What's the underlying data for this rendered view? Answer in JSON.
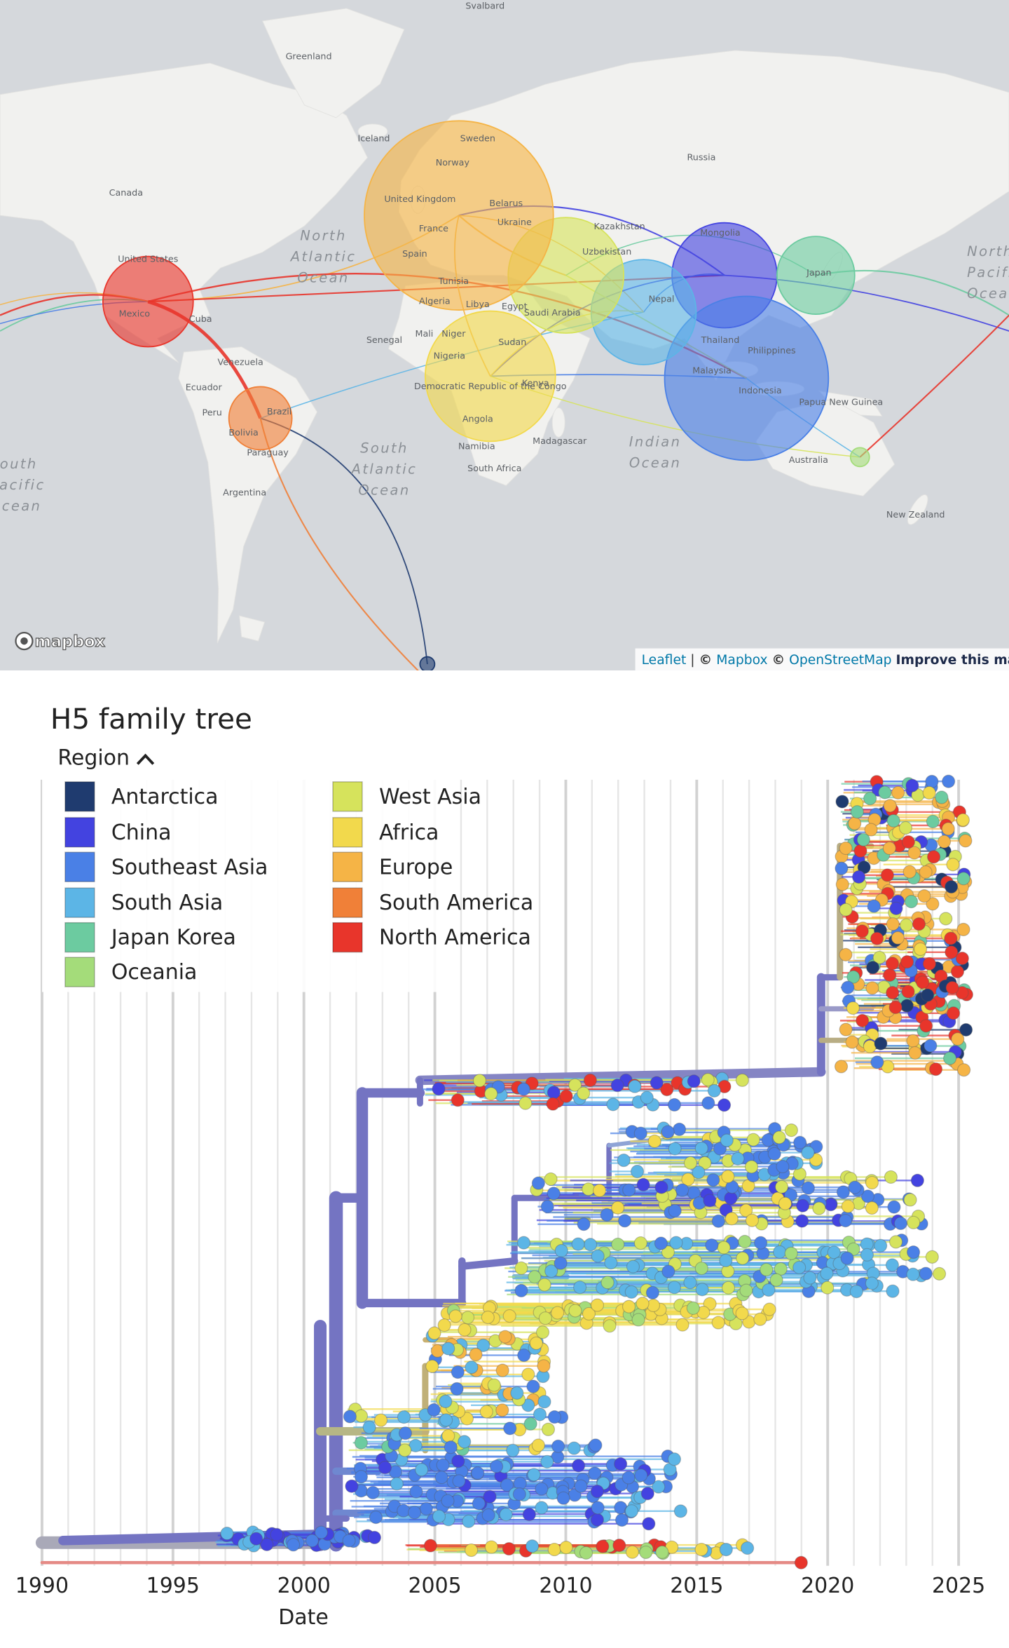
{
  "map": {
    "labels": [
      "Svalbard",
      "Greenland",
      "Iceland",
      "Sweden",
      "Norway",
      "Russia",
      "Canada",
      "United Kingdom",
      "Belarus",
      "Kazakhstan",
      "Mongolia",
      "France",
      "Ukraine",
      "Uzbekistan",
      "Japan",
      "United States",
      "Spain",
      "Tunisia",
      "Algeria",
      "Libya",
      "Egypt",
      "Saudi Arabia",
      "Mexico",
      "Cuba",
      "Senegal",
      "Mali",
      "Niger",
      "Sudan",
      "Philippines",
      "Nigeria",
      "Venezuela",
      "Thailand",
      "Malaysia",
      "Ecuador",
      "Democratic Republic of the Congo",
      "Kenya",
      "Indonesia",
      "Peru",
      "Brazil",
      "Bolivia",
      "Papua New Guinea",
      "Paraguay",
      "Angola",
      "Madagascar",
      "Namibia",
      "South Africa",
      "Australia",
      "Argentina",
      "New Zealand",
      "Nepal"
    ],
    "ocean_labels": [
      [
        "North",
        "Atlantic",
        "Ocean"
      ],
      [
        "South",
        "Atlantic",
        "Ocean"
      ],
      [
        "Indian",
        "Ocean"
      ],
      [
        "North",
        "Pacific",
        "Ocean"
      ],
      [
        "South",
        "Pacific",
        "Ocean"
      ]
    ],
    "logo": "mapbox",
    "attribution": [
      "Leaflet",
      "|",
      "©",
      "Mapbox",
      "©",
      "OpenStreetMap",
      "Improve this map"
    ]
  },
  "tree": {
    "title": "H5 family tree",
    "legend_title": "Region",
    "legend": [
      {
        "name": "Antarctica",
        "color": "#1f3b6f"
      },
      {
        "name": "China",
        "color": "#4343e0"
      },
      {
        "name": "Southeast Asia",
        "color": "#4a80e6"
      },
      {
        "name": "South Asia",
        "color": "#5cb5e6"
      },
      {
        "name": "Japan Korea",
        "color": "#6ccba0"
      },
      {
        "name": "Oceania",
        "color": "#a4dc7a"
      },
      {
        "name": "West Asia",
        "color": "#d6e35c"
      },
      {
        "name": "Africa",
        "color": "#f2d94c"
      },
      {
        "name": "Europe",
        "color": "#f5b446"
      },
      {
        "name": "South America",
        "color": "#f08038"
      },
      {
        "name": "North America",
        "color": "#e8352b"
      }
    ],
    "xlim": [
      1990,
      2025
    ],
    "xticks": [
      1990,
      1995,
      2000,
      2005,
      2010,
      2015,
      2020,
      2025
    ],
    "xlabel": "Date"
  }
}
